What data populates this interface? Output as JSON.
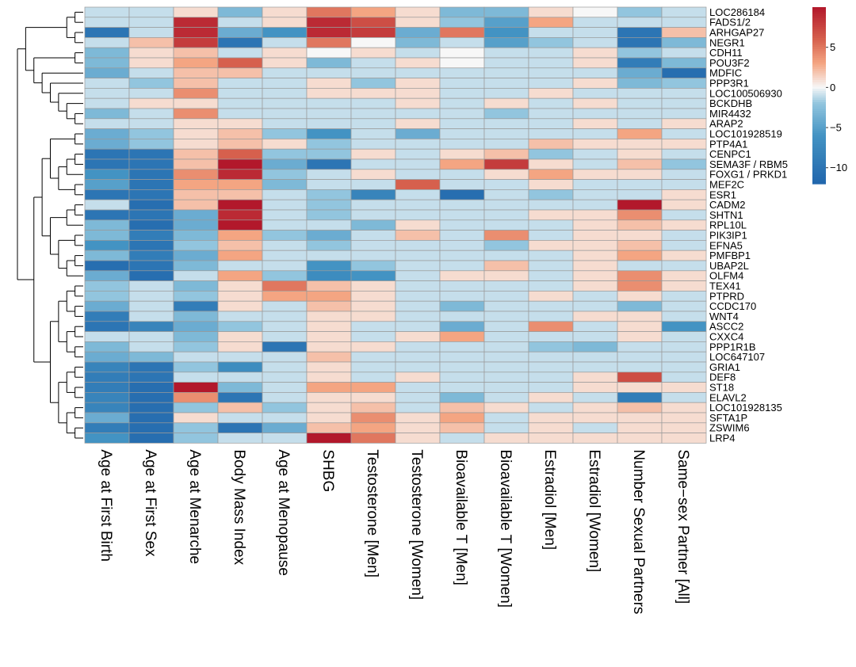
{
  "chart_data": {
    "type": "heatmap",
    "rows": [
      "LOC286184",
      "FADS1/2",
      "ARHGAP27",
      "NEGR1",
      "CDH11",
      "POU3F2",
      "MDFIC",
      "PPP3R1",
      "LOC100506930",
      "BCKDHB",
      "MIR4432",
      "ARAP2",
      "LOC101928519",
      "PTP4A1",
      "CENPC1",
      "SEMA3F / RBM5",
      "FOXG1 / PRKD1",
      "MEF2C",
      "ESR1",
      "CADM2",
      "SHTN1",
      "RPL10L",
      "PIK3IP1",
      "EFNA5",
      "PMFBP1",
      "UBAP2L",
      "OLFM4",
      "TEX41",
      "PTPRD",
      "CCDC170",
      "WNT4",
      "ASCC2",
      "CXXC4",
      "PPP1R1B",
      "LOC647107",
      "GRIA1",
      "DEF8",
      "ST18",
      "ELAVL2",
      "LOC101928135",
      "SFTA1P",
      "ZSWIM6",
      "LRP4"
    ],
    "columns": [
      "Age at First Birth",
      "Age at First Sex",
      "Age at Menarche",
      "Body Mass Index",
      "Age at Menopause",
      "SHBG",
      "Testosterone [Men]",
      "Testosterone [Women]",
      "Bioavailable T [Men]",
      "Bioavailable T [Women]",
      "Estradiol [Men]",
      "Estradiol [Women]",
      "Number Sexual Partners",
      "Same−sex Partner [All]"
    ],
    "values": [
      [
        -1,
        -1,
        1,
        -3,
        1,
        5,
        3,
        1,
        -3,
        -3,
        1,
        0,
        -2,
        -1
      ],
      [
        -1,
        -1,
        9,
        -1,
        1,
        9,
        7,
        1,
        -2,
        -5,
        3,
        -1,
        -1,
        -1
      ],
      [
        -10,
        -1,
        9,
        -4,
        -6,
        9,
        8,
        -4,
        5,
        -6,
        -1,
        -1,
        -10,
        2
      ],
      [
        -1,
        2,
        8,
        -10,
        -1,
        5,
        0,
        -3,
        -1,
        -5,
        -2,
        -1,
        -10,
        -3
      ],
      [
        -3,
        1,
        2,
        -1,
        1,
        0,
        1,
        -1,
        0,
        -1,
        -1,
        1,
        -2,
        -1
      ],
      [
        -3,
        1,
        3,
        6,
        1,
        -3,
        -1,
        1,
        0,
        -1,
        -1,
        1,
        -9,
        -3
      ],
      [
        -4,
        -1,
        2,
        2,
        -1,
        -1,
        -1,
        -1,
        -1,
        -1,
        -1,
        -1,
        -4,
        -11
      ],
      [
        -1,
        -2,
        2,
        -1,
        -1,
        1,
        -2,
        1,
        -1,
        -1,
        -1,
        1,
        -3,
        -2
      ],
      [
        -1,
        -1,
        4,
        -1,
        -1,
        1,
        1,
        1,
        -1,
        -1,
        1,
        -1,
        -1,
        -1
      ],
      [
        -1,
        1,
        1,
        -1,
        -1,
        -1,
        -1,
        1,
        -1,
        1,
        -1,
        1,
        -1,
        -1
      ],
      [
        -3,
        -1,
        4,
        -1,
        -1,
        -1,
        -1,
        -1,
        -1,
        -2,
        -1,
        -1,
        -1,
        -1
      ],
      [
        -1,
        -1,
        1,
        1,
        -1,
        -1,
        -1,
        1,
        -1,
        -1,
        -1,
        1,
        -1,
        1
      ],
      [
        -4,
        -2,
        1,
        2,
        -2,
        -6,
        -1,
        -4,
        -1,
        -1,
        -1,
        -1,
        3,
        -1
      ],
      [
        -4,
        -2,
        1,
        2,
        1,
        -2,
        -1,
        -1,
        -1,
        -1,
        2,
        1,
        1,
        1
      ],
      [
        -10,
        -10,
        2,
        6,
        -2,
        -2,
        1,
        -1,
        1,
        2,
        -2,
        -1,
        1,
        -1
      ],
      [
        -10,
        -10,
        2,
        10,
        -4,
        -10,
        -1,
        -1,
        3,
        8,
        1,
        -1,
        2,
        -2
      ],
      [
        -6,
        -10,
        4,
        9,
        -2,
        -1,
        1,
        -1,
        -1,
        1,
        3,
        1,
        1,
        -1
      ],
      [
        -5,
        -10,
        3,
        3,
        -3,
        -1,
        -1,
        6,
        -1,
        -1,
        1,
        -1,
        -1,
        -1
      ],
      [
        -10,
        -10,
        2,
        2,
        -1,
        -2,
        -8,
        -1,
        -11,
        -1,
        -2,
        -1,
        -1,
        1
      ],
      [
        -1,
        -11,
        2,
        10,
        -1,
        -2,
        -1,
        -1,
        -1,
        -1,
        -1,
        -1,
        10,
        1
      ],
      [
        -10,
        -10,
        -4,
        9,
        -1,
        -2,
        -1,
        -1,
        -1,
        -1,
        1,
        1,
        4,
        -1
      ],
      [
        -3,
        -11,
        -4,
        10,
        -1,
        -1,
        -3,
        1,
        -1,
        -1,
        -1,
        1,
        2,
        1
      ],
      [
        -3,
        -9,
        -3,
        3,
        -2,
        -4,
        -1,
        2,
        -1,
        4,
        -1,
        1,
        1,
        -1
      ],
      [
        -6,
        -10,
        -2,
        2,
        -1,
        -2,
        -1,
        -1,
        -1,
        -2,
        1,
        1,
        2,
        -1
      ],
      [
        -3,
        -9,
        -4,
        3,
        -1,
        -1,
        -1,
        -1,
        -1,
        -1,
        -1,
        1,
        3,
        1
      ],
      [
        -11,
        -10,
        -3,
        -1,
        -1,
        -6,
        -2,
        -1,
        -1,
        2,
        -1,
        1,
        -1,
        -1
      ],
      [
        -4,
        -11,
        -1,
        3,
        -2,
        -7,
        -6,
        -1,
        1,
        1,
        -1,
        1,
        4,
        1
      ],
      [
        -2,
        -1,
        -3,
        1,
        5,
        2,
        1,
        -1,
        -1,
        -1,
        -1,
        1,
        4,
        1
      ],
      [
        -2,
        -1,
        -2,
        1,
        3,
        3,
        1,
        -1,
        -1,
        -1,
        1,
        -1,
        1,
        -1
      ],
      [
        -4,
        -1,
        -9,
        1,
        -1,
        2,
        1,
        -1,
        -3,
        -1,
        -1,
        -1,
        -3,
        -1
      ],
      [
        -9,
        -1,
        -3,
        -1,
        -1,
        1,
        1,
        -1,
        -1,
        -1,
        -1,
        1,
        1,
        -1
      ],
      [
        -10,
        -8,
        -4,
        -2,
        -1,
        1,
        -1,
        -1,
        -4,
        -1,
        4,
        -1,
        1,
        -6
      ],
      [
        -1,
        -1,
        -3,
        1,
        -1,
        1,
        -1,
        1,
        3,
        -1,
        -1,
        -1,
        1,
        -1
      ],
      [
        -3,
        -1,
        -2,
        1,
        -10,
        1,
        1,
        -1,
        -1,
        -1,
        -2,
        -3,
        -1,
        -1
      ],
      [
        -4,
        -3,
        -1,
        -1,
        -1,
        2,
        -1,
        -1,
        -1,
        -1,
        -1,
        -1,
        -1,
        -1
      ],
      [
        -8,
        -10,
        -2,
        -7,
        -1,
        1,
        -1,
        -1,
        -1,
        -1,
        -1,
        -1,
        -1,
        -1
      ],
      [
        -9,
        -10,
        -1,
        -1,
        -1,
        1,
        -1,
        1,
        -1,
        -1,
        -1,
        1,
        7,
        -1
      ],
      [
        -9,
        -11,
        10,
        -3,
        -1,
        3,
        3,
        -1,
        -1,
        -1,
        -1,
        1,
        1,
        1
      ],
      [
        -8,
        -11,
        4,
        -10,
        -1,
        1,
        1,
        -1,
        -3,
        -1,
        1,
        -1,
        -9,
        -1
      ],
      [
        -8,
        -11,
        -2,
        2,
        -2,
        1,
        2,
        -1,
        2,
        1,
        -1,
        1,
        2,
        1
      ],
      [
        -4,
        -11,
        1,
        -1,
        -1,
        1,
        4,
        1,
        3,
        -1,
        1,
        1,
        1,
        1
      ],
      [
        -9,
        -11,
        -2,
        -10,
        -4,
        2,
        3,
        1,
        2,
        -1,
        1,
        -1,
        1,
        1
      ],
      [
        -6,
        -11,
        -2,
        -1,
        -1,
        10,
        5,
        1,
        -1,
        1,
        1,
        1,
        1,
        1
      ]
    ],
    "color_scale": {
      "min": -12,
      "max": 10,
      "stops": [
        {
          "value": -12,
          "color": "#2166ac"
        },
        {
          "value": -6,
          "color": "#4393c3"
        },
        {
          "value": -2,
          "color": "#92c5de"
        },
        {
          "value": 0,
          "color": "#f7f7f7"
        },
        {
          "value": 3,
          "color": "#f4a582"
        },
        {
          "value": 6,
          "color": "#d6604d"
        },
        {
          "value": 10,
          "color": "#b2182b"
        }
      ]
    },
    "legend": {
      "ticks": [
        5,
        0,
        -5,
        -10
      ],
      "placement": "right"
    },
    "dendrogram": "rows",
    "grid": true
  }
}
